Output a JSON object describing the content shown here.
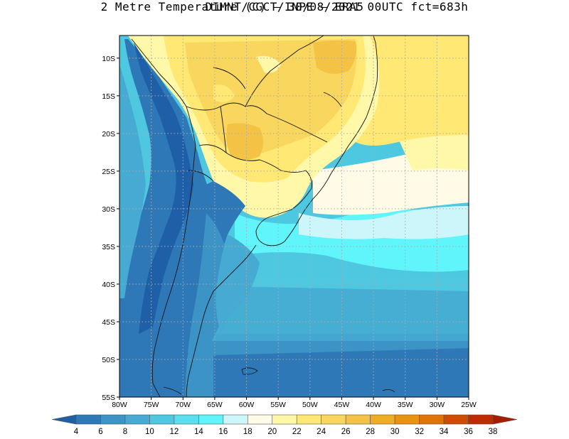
{
  "title": {
    "line1": "DIMNT/CGCT/INPE –  ERA5",
    "line2": "2 Metre Temperature (C) –  30/08/2021 00UTC fct=683h"
  },
  "map": {
    "lon_range": [
      -80,
      -25
    ],
    "lat_range": [
      -55,
      -7
    ],
    "lon_ticks": [
      {
        "value": -80,
        "label": "80W"
      },
      {
        "value": -75,
        "label": "75W"
      },
      {
        "value": -70,
        "label": "70W"
      },
      {
        "value": -65,
        "label": "65W"
      },
      {
        "value": -60,
        "label": "60W"
      },
      {
        "value": -55,
        "label": "55W"
      },
      {
        "value": -50,
        "label": "50W"
      },
      {
        "value": -45,
        "label": "45W"
      },
      {
        "value": -40,
        "label": "40W"
      },
      {
        "value": -35,
        "label": "35W"
      },
      {
        "value": -30,
        "label": "30W"
      },
      {
        "value": -25,
        "label": "25W"
      }
    ],
    "lat_ticks": [
      {
        "value": -10,
        "label": "10S"
      },
      {
        "value": -15,
        "label": "15S"
      },
      {
        "value": -20,
        "label": "20S"
      },
      {
        "value": -25,
        "label": "25S"
      },
      {
        "value": -30,
        "label": "30S"
      },
      {
        "value": -35,
        "label": "35S"
      },
      {
        "value": -40,
        "label": "40S"
      },
      {
        "value": -45,
        "label": "45S"
      },
      {
        "value": -50,
        "label": "50S"
      },
      {
        "value": -55,
        "label": "55S"
      }
    ],
    "grid": "dotted"
  },
  "colorbar": {
    "levels": [
      "4",
      "6",
      "8",
      "10",
      "12",
      "14",
      "16",
      "18",
      "20",
      "22",
      "24",
      "26",
      "28",
      "30",
      "32",
      "34",
      "36",
      "38"
    ],
    "colors": [
      "#1e5fa8",
      "#2f78b8",
      "#3b93c6",
      "#46aad2",
      "#4ec7e0",
      "#58e0ee",
      "#5ff5fb",
      "#cdf6fb",
      "#fffbe6",
      "#fff8a8",
      "#ffe874",
      "#f9d65e",
      "#f4c346",
      "#eead24",
      "#e89410",
      "#e17206",
      "#d24b02",
      "#c02a00",
      "#a71d00"
    ]
  }
}
